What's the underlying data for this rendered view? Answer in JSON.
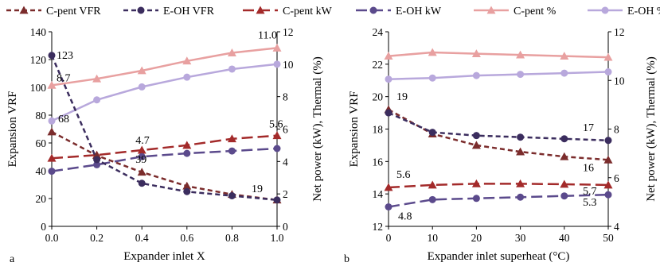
{
  "legend": [
    {
      "label": "C-pent VFR",
      "color": "#7b2c2c",
      "dash": "dash",
      "marker": "triangle"
    },
    {
      "label": "E-OH VFR",
      "color": "#3b2d5e",
      "dash": "dash",
      "marker": "circle"
    },
    {
      "label": "C-pent kW",
      "color": "#a32a2a",
      "dash": "longdash",
      "marker": "triangle"
    },
    {
      "label": "E-OH kW",
      "color": "#5b4a8c",
      "dash": "longdash",
      "marker": "circle"
    },
    {
      "label": "C-pent %",
      "color": "#e8a0a0",
      "dash": "solid",
      "marker": "triangle"
    },
    {
      "label": "E-OH %",
      "color": "#b8a8dc",
      "dash": "solid",
      "marker": "circle"
    }
  ],
  "chart_data": [
    {
      "type": "line",
      "panel": "a",
      "xlabel": "Expander inlet X",
      "ylabel_left": "Expansion VRF",
      "ylabel_right": "Net power  (kW), Thermal (%)",
      "x": [
        0.0,
        0.2,
        0.4,
        0.6,
        0.8,
        1.0
      ],
      "x_ticks": [
        "0.0",
        "0.2",
        "0.4",
        "0.6",
        "0.8",
        "1.0"
      ],
      "xlim": [
        0,
        1
      ],
      "ylim_left": [
        0,
        140
      ],
      "y_ticks_left": [
        "0",
        "20",
        "40",
        "60",
        "80",
        "100",
        "120",
        "140"
      ],
      "ylim_right": [
        0,
        12
      ],
      "y_ticks_right": [
        "0",
        "2",
        "4",
        "6",
        "8",
        "10",
        "12"
      ],
      "grid": false,
      "series": [
        {
          "name": "C-pent VFR",
          "axis": "left",
          "values": [
            68,
            51,
            39,
            29,
            23,
            19
          ]
        },
        {
          "name": "E-OH VFR",
          "axis": "left",
          "values": [
            123,
            48,
            31,
            25,
            22,
            19
          ]
        },
        {
          "name": "C-pent kW",
          "axis": "right",
          "values": [
            4.2,
            4.4,
            4.7,
            5.0,
            5.4,
            5.6
          ]
        },
        {
          "name": "E-OH kW",
          "axis": "right",
          "values": [
            3.4,
            3.8,
            4.3,
            4.5,
            4.65,
            4.8
          ]
        },
        {
          "name": "C-pent %",
          "axis": "right",
          "values": [
            8.7,
            9.1,
            9.6,
            10.2,
            10.7,
            11.0
          ]
        },
        {
          "name": "E-OH %",
          "axis": "right",
          "values": [
            6.5,
            7.8,
            8.6,
            9.2,
            9.7,
            10.0
          ]
        }
      ],
      "annotations": [
        {
          "text": "123",
          "series": "E-OH VFR",
          "index": 0
        },
        {
          "text": "8.7",
          "series": "C-pent %",
          "index": 0
        },
        {
          "text": "68",
          "series": "C-pent VFR",
          "index": 0
        },
        {
          "text": "4.7",
          "series": "C-pent kW",
          "index": 2
        },
        {
          "text": "39",
          "series": "C-pent VFR",
          "index": 2
        },
        {
          "text": "5.6",
          "series": "C-pent kW",
          "index": 5
        },
        {
          "text": "11.0",
          "series": "C-pent %",
          "index": 5
        },
        {
          "text": "19",
          "series": "E-OH VFR",
          "index": 5
        }
      ],
      "panel_label": "a"
    },
    {
      "type": "line",
      "panel": "b",
      "xlabel": "Expander inlet superheat (°C)",
      "ylabel_left": "Expansion VRF",
      "ylabel_right": "Net power  (kW), Thermal (%)",
      "x": [
        0,
        10,
        20,
        30,
        40,
        50
      ],
      "x_ticks": [
        "0",
        "10",
        "20",
        "30",
        "40",
        "50"
      ],
      "xlim": [
        0,
        50
      ],
      "ylim_left": [
        12,
        24
      ],
      "y_ticks_left": [
        "12",
        "14",
        "16",
        "18",
        "20",
        "22",
        "24"
      ],
      "ylim_right": [
        4,
        12
      ],
      "y_ticks_right": [
        "4",
        "6",
        "8",
        "10",
        "12"
      ],
      "grid": false,
      "series": [
        {
          "name": "C-pent VFR",
          "axis": "left",
          "values": [
            19.2,
            17.7,
            17.0,
            16.6,
            16.3,
            16.1
          ]
        },
        {
          "name": "E-OH VFR",
          "axis": "left",
          "values": [
            19.0,
            17.8,
            17.6,
            17.5,
            17.4,
            17.3
          ]
        },
        {
          "name": "C-pent kW",
          "axis": "right",
          "values": [
            5.6,
            5.7,
            5.75,
            5.75,
            5.73,
            5.7
          ]
        },
        {
          "name": "E-OH kW",
          "axis": "right",
          "values": [
            4.8,
            5.1,
            5.15,
            5.2,
            5.25,
            5.3
          ]
        },
        {
          "name": "C-pent %",
          "axis": "right",
          "values": [
            11.0,
            11.15,
            11.1,
            11.05,
            11.0,
            10.95
          ]
        },
        {
          "name": "E-OH %",
          "axis": "right",
          "values": [
            10.05,
            10.1,
            10.2,
            10.25,
            10.3,
            10.35
          ]
        }
      ],
      "annotations": [
        {
          "text": "19",
          "series": "C-pent VFR",
          "index": 0
        },
        {
          "text": "5.6",
          "series": "C-pent kW",
          "index": 0
        },
        {
          "text": "4.8",
          "series": "E-OH kW",
          "index": 0
        },
        {
          "text": "17",
          "series": "E-OH VFR",
          "index": 5
        },
        {
          "text": "16",
          "series": "C-pent VFR",
          "index": 5
        },
        {
          "text": "5.7",
          "series": "C-pent kW",
          "index": 5
        },
        {
          "text": "5.3",
          "series": "E-OH kW",
          "index": 5
        }
      ],
      "panel_label": "b"
    }
  ]
}
